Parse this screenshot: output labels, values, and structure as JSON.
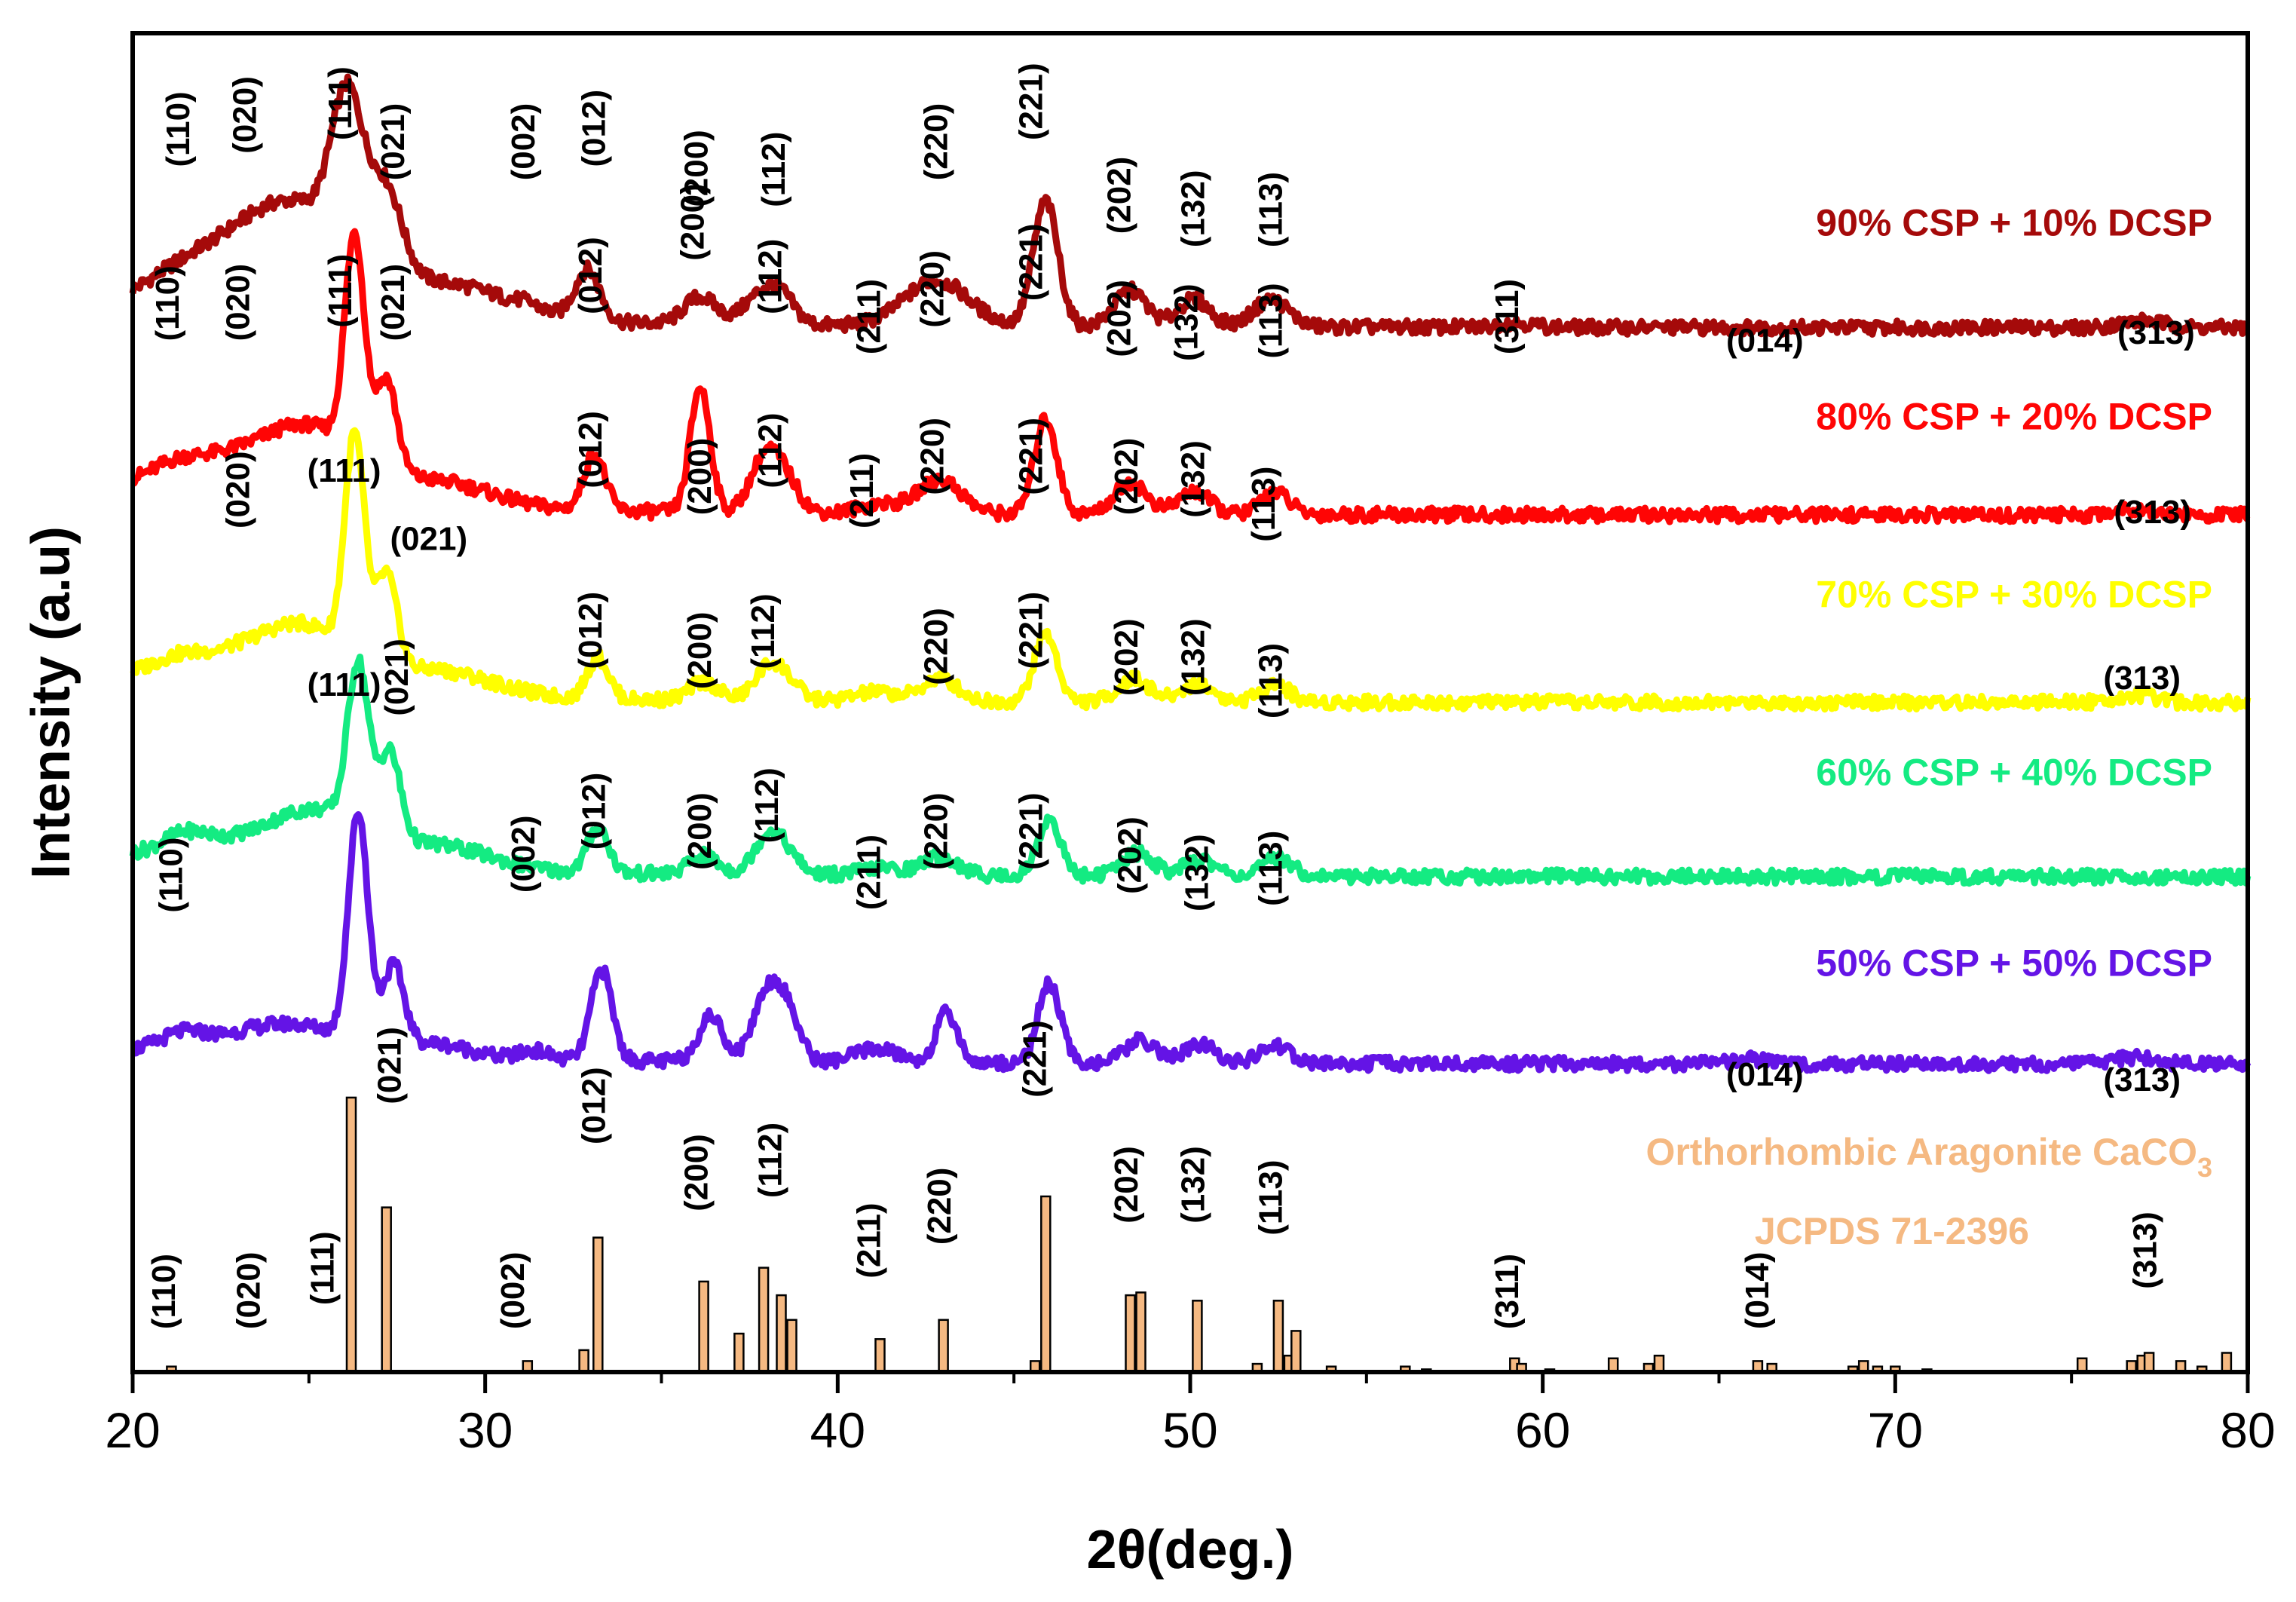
{
  "chart_data": {
    "type": "line",
    "title": "",
    "xlabel": "2θ(deg.)",
    "ylabel": "Intensity (a.u)",
    "xlim": [
      20,
      80
    ],
    "xticks": [
      20,
      30,
      40,
      50,
      60,
      70,
      80
    ],
    "xtick_labels": [
      "20",
      "30",
      "40",
      "50",
      "60",
      "70",
      "80"
    ],
    "grid": false,
    "legend": "inline labels at right",
    "series": [
      {
        "name": "90% CSP + 10% DCSP",
        "color": "#a50a0a",
        "offset": 0.78,
        "scale": 0.17,
        "base": 0.08,
        "peaks": [
          [
            21.2,
            0.05,
            1.0
          ],
          [
            23.5,
            0.3,
            2.0
          ],
          [
            25.0,
            0.25,
            1.5
          ],
          [
            26.1,
            0.65,
            0.45
          ],
          [
            27.2,
            0.35,
            0.45
          ],
          [
            29.0,
            0.15,
            1.8
          ],
          [
            31.2,
            0.02,
            0.3
          ],
          [
            32.9,
            0.22,
            0.35
          ],
          [
            36.1,
            0.12,
            0.45
          ],
          [
            37.8,
            0.12,
            0.5
          ],
          [
            38.4,
            0.1,
            0.4
          ],
          [
            42.8,
            0.2,
            0.9
          ],
          [
            45.9,
            0.55,
            0.35
          ],
          [
            48.3,
            0.16,
            0.45
          ],
          [
            50.1,
            0.12,
            0.45
          ],
          [
            52.3,
            0.12,
            0.5
          ],
          [
            59.2,
            0.02,
            0.5
          ],
          [
            77.0,
            0.03,
            0.6
          ]
        ],
        "labels": [
          {
            "t": "(110)",
            "x": 21.8,
            "y": 1.03
          },
          {
            "t": "(020)",
            "x": 23.8,
            "y": 1.06
          },
          {
            "t": "(111)",
            "x": 26.2,
            "y": 1.07
          },
          {
            "t": "(021)",
            "x": 27.7,
            "y": 1.04
          },
          {
            "t": "(002)",
            "x": 31.4,
            "y": 0.89
          },
          {
            "t": "(012)",
            "x": 33.4,
            "y": 0.9
          },
          {
            "t": "(200)",
            "x": 36.3,
            "y": 0.87
          },
          {
            "t": "(112)",
            "x": 38.5,
            "y": 0.87
          },
          {
            "t": "(220)",
            "x": 43.1,
            "y": 0.89
          },
          {
            "t": "(221)",
            "x": 45.8,
            "y": 0.92
          },
          {
            "t": "(202)",
            "x": 48.3,
            "y": 0.85
          },
          {
            "t": "(132)",
            "x": 50.4,
            "y": 0.84
          },
          {
            "t": "(113)",
            "x": 52.6,
            "y": 0.84
          },
          {
            "t": "(311)",
            "x": 59.3,
            "y": 0.76
          },
          {
            "t": "(014)",
            "x": 66.3,
            "y": 0.762
          },
          {
            "t": "(313)",
            "x": 77.4,
            "y": 0.768
          }
        ]
      },
      {
        "name": "80% CSP + 20% DCSP",
        "color": "#ff0505",
        "offset": 0.64,
        "scale": 0.17,
        "base": 0.07,
        "peaks": [
          [
            21.3,
            0.03,
            0.6
          ],
          [
            23.3,
            0.22,
            2.5
          ],
          [
            25.2,
            0.18,
            1.2
          ],
          [
            26.3,
            0.95,
            0.28
          ],
          [
            27.2,
            0.4,
            0.3
          ],
          [
            28.8,
            0.1,
            1.5
          ],
          [
            33.1,
            0.25,
            0.3
          ],
          [
            36.1,
            0.55,
            0.28
          ],
          [
            37.9,
            0.22,
            0.4
          ],
          [
            38.5,
            0.14,
            0.4
          ],
          [
            41.2,
            0.04,
            0.6
          ],
          [
            42.9,
            0.15,
            0.6
          ],
          [
            45.9,
            0.42,
            0.32
          ],
          [
            48.3,
            0.14,
            0.45
          ],
          [
            50.1,
            0.1,
            0.45
          ],
          [
            52.4,
            0.1,
            0.4
          ],
          [
            76.8,
            0.03,
            0.6
          ]
        ],
        "labels": [
          {
            "t": "(110)",
            "x": 21.6,
            "y": 0.9
          },
          {
            "t": "(020)",
            "x": 23.5,
            "y": 0.91
          },
          {
            "t": "(111)",
            "x": 26.2,
            "y": 0.92
          },
          {
            "t": "(021)",
            "x": 27.7,
            "y": 0.89
          },
          {
            "t": "(012)",
            "x": 33.3,
            "y": 0.79
          },
          {
            "t": "(200)",
            "x": 36.2,
            "y": 0.83
          },
          {
            "t": "(112)",
            "x": 38.4,
            "y": 0.79
          },
          {
            "t": "(211)",
            "x": 41.2,
            "y": 0.76
          },
          {
            "t": "(220)",
            "x": 43.0,
            "y": 0.78
          },
          {
            "t": "(221)",
            "x": 45.8,
            "y": 0.8
          },
          {
            "t": "(202)",
            "x": 48.3,
            "y": 0.758
          },
          {
            "t": "(132)",
            "x": 50.2,
            "y": 0.755
          },
          {
            "t": "(113)",
            "x": 52.6,
            "y": 0.757
          },
          {
            "t": "(313)",
            "x": 77.3,
            "y": 0.634
          }
        ]
      },
      {
        "name": "70% CSP + 30% DCSP",
        "color": "#ffff00",
        "offset": 0.5,
        "scale": 0.17,
        "base": 0.06,
        "peaks": [
          [
            21.2,
            0.03,
            0.6
          ],
          [
            23.3,
            0.18,
            2.5
          ],
          [
            25.0,
            0.16,
            1.2
          ],
          [
            26.3,
            0.95,
            0.28
          ],
          [
            27.2,
            0.4,
            0.3
          ],
          [
            28.8,
            0.1,
            1.5
          ],
          [
            33.2,
            0.18,
            0.3
          ],
          [
            36.2,
            0.08,
            0.4
          ],
          [
            38.0,
            0.12,
            0.4
          ],
          [
            38.5,
            0.08,
            0.4
          ],
          [
            41.1,
            0.04,
            0.6
          ],
          [
            42.9,
            0.1,
            0.5
          ],
          [
            45.9,
            0.3,
            0.32
          ],
          [
            48.4,
            0.1,
            0.45
          ],
          [
            50.2,
            0.08,
            0.45
          ],
          [
            52.4,
            0.08,
            0.4
          ],
          [
            76.8,
            0.03,
            0.6
          ]
        ],
        "labels": [
          {
            "t": "(110)",
            "x": 21.3,
            "y": 0.77
          },
          {
            "t": "(020)",
            "x": 23.3,
            "y": 0.77
          },
          {
            "t": "(111)",
            "x": 26.2,
            "y": 0.78
          },
          {
            "t": "(021)",
            "x": 27.7,
            "y": 0.77
          },
          {
            "t": "(012)",
            "x": 33.3,
            "y": 0.66
          },
          {
            "t": "(200)",
            "x": 36.4,
            "y": 0.64
          },
          {
            "t": "(112)",
            "x": 38.4,
            "y": 0.66
          },
          {
            "t": "(211)",
            "x": 41.0,
            "y": 0.63
          },
          {
            "t": "(220)",
            "x": 43.0,
            "y": 0.655
          },
          {
            "t": "(221)",
            "x": 45.8,
            "y": 0.655
          },
          {
            "t": "(202)",
            "x": 48.5,
            "y": 0.64
          },
          {
            "t": "(132)",
            "x": 50.4,
            "y": 0.638
          },
          {
            "t": "(113)",
            "x": 52.4,
            "y": 0.62
          },
          {
            "t": "(313)",
            "x": 77.0,
            "y": 0.51
          }
        ]
      },
      {
        "name": "60% CSP + 40% DCSP",
        "color": "#14eb82",
        "offset": 0.37,
        "scale": 0.17,
        "base": 0.06,
        "peaks": [
          [
            21.5,
            0.06,
            0.6
          ],
          [
            23.5,
            0.12,
            2.5
          ],
          [
            25.3,
            0.16,
            1.2
          ],
          [
            26.4,
            0.72,
            0.3
          ],
          [
            27.3,
            0.38,
            0.3
          ],
          [
            28.7,
            0.1,
            1.5
          ],
          [
            33.2,
            0.2,
            0.3
          ],
          [
            36.2,
            0.08,
            0.4
          ],
          [
            38.0,
            0.15,
            0.4
          ],
          [
            38.5,
            0.08,
            0.4
          ],
          [
            41.2,
            0.03,
            0.6
          ],
          [
            42.9,
            0.08,
            0.5
          ],
          [
            46.0,
            0.25,
            0.32
          ],
          [
            48.5,
            0.1,
            0.45
          ],
          [
            50.3,
            0.07,
            0.45
          ],
          [
            52.5,
            0.08,
            0.4
          ]
        ],
        "labels": [
          {
            "t": "(020)",
            "x": 23.3,
            "y": 0.63
          },
          {
            "t": "(111)",
            "x": 26.0,
            "y": 0.665
          },
          {
            "t": "(021)",
            "x": 28.4,
            "y": 0.614
          },
          {
            "t": "(012)",
            "x": 33.3,
            "y": 0.525
          },
          {
            "t": "(200)",
            "x": 36.4,
            "y": 0.51
          },
          {
            "t": "(112)",
            "x": 38.2,
            "y": 0.525
          },
          {
            "t": "(220)",
            "x": 43.1,
            "y": 0.513
          },
          {
            "t": "(221)",
            "x": 45.8,
            "y": 0.525
          },
          {
            "t": "(202)",
            "x": 48.5,
            "y": 0.505
          },
          {
            "t": "(132)",
            "x": 50.4,
            "y": 0.505
          },
          {
            "t": "(113)",
            "x": 52.6,
            "y": 0.488
          }
        ]
      },
      {
        "name": "50% CSP + 50% DCSP",
        "color": "#6414e6",
        "offset": 0.23,
        "scale": 0.17,
        "base": 0.06,
        "peaks": [
          [
            21.4,
            0.06,
            0.6
          ],
          [
            23.3,
            0.06,
            1.5
          ],
          [
            25.0,
            0.1,
            1.5
          ],
          [
            26.4,
            1.0,
            0.28
          ],
          [
            27.4,
            0.35,
            0.3
          ],
          [
            28.6,
            0.06,
            1.0
          ],
          [
            31.4,
            0.04,
            0.4
          ],
          [
            33.3,
            0.4,
            0.3
          ],
          [
            36.4,
            0.2,
            0.35
          ],
          [
            38.0,
            0.3,
            0.4
          ],
          [
            38.6,
            0.18,
            0.35
          ],
          [
            41.1,
            0.06,
            0.6
          ],
          [
            43.1,
            0.22,
            0.3
          ],
          [
            46.0,
            0.35,
            0.32
          ],
          [
            48.6,
            0.1,
            0.45
          ],
          [
            50.3,
            0.08,
            0.45
          ],
          [
            52.4,
            0.08,
            0.4
          ],
          [
            66.0,
            0.02,
            0.5
          ],
          [
            76.8,
            0.03,
            0.6
          ]
        ],
        "labels": [
          {
            "t": "(110)",
            "x": 21.4,
            "y": 0.343
          },
          {
            "t": "(111)",
            "x": 26.0,
            "y": 0.505
          },
          {
            "t": "(021)",
            "x": 27.8,
            "y": 0.49
          },
          {
            "t": "(002)",
            "x": 31.4,
            "y": 0.358
          },
          {
            "t": "(012)",
            "x": 33.4,
            "y": 0.39
          },
          {
            "t": "(200)",
            "x": 36.4,
            "y": 0.375
          },
          {
            "t": "(112)",
            "x": 38.3,
            "y": 0.395
          },
          {
            "t": "(211)",
            "x": 41.2,
            "y": 0.345
          },
          {
            "t": "(220)",
            "x": 43.1,
            "y": 0.375
          },
          {
            "t": "(221)",
            "x": 45.8,
            "y": 0.375
          },
          {
            "t": "(202)",
            "x": 48.6,
            "y": 0.357
          },
          {
            "t": "(132)",
            "x": 50.5,
            "y": 0.344
          },
          {
            "t": "(113)",
            "x": 52.6,
            "y": 0.348
          },
          {
            "t": "(014)",
            "x": 66.3,
            "y": 0.214
          },
          {
            "t": "(313)",
            "x": 77.0,
            "y": 0.21
          }
        ]
      }
    ],
    "reference": {
      "name": "Orthorhombic Aragonite CaCO",
      "subscript": "3",
      "card": "JCPDS 71-2396",
      "color": "#f5b982",
      "sticks": [
        [
          21.1,
          0.02
        ],
        [
          26.2,
          1.0
        ],
        [
          27.2,
          0.6
        ],
        [
          31.2,
          0.04
        ],
        [
          32.8,
          0.08
        ],
        [
          33.2,
          0.49
        ],
        [
          36.2,
          0.33
        ],
        [
          37.2,
          0.14
        ],
        [
          37.9,
          0.38
        ],
        [
          38.4,
          0.28
        ],
        [
          38.7,
          0.19
        ],
        [
          41.2,
          0.12
        ],
        [
          43.0,
          0.19
        ],
        [
          45.6,
          0.04
        ],
        [
          45.9,
          0.64
        ],
        [
          48.3,
          0.28
        ],
        [
          48.6,
          0.29
        ],
        [
          50.2,
          0.26
        ],
        [
          51.9,
          0.03
        ],
        [
          52.5,
          0.26
        ],
        [
          52.8,
          0.06
        ],
        [
          53.0,
          0.15
        ],
        [
          54.0,
          0.02
        ],
        [
          56.1,
          0.02
        ],
        [
          56.7,
          0.01
        ],
        [
          59.2,
          0.05
        ],
        [
          59.4,
          0.03
        ],
        [
          60.2,
          0.01
        ],
        [
          62.0,
          0.05
        ],
        [
          63.0,
          0.03
        ],
        [
          63.3,
          0.06
        ],
        [
          66.1,
          0.04
        ],
        [
          66.5,
          0.03
        ],
        [
          68.8,
          0.02
        ],
        [
          69.1,
          0.04
        ],
        [
          69.5,
          0.02
        ],
        [
          70.0,
          0.02
        ],
        [
          70.9,
          0.01
        ],
        [
          75.3,
          0.05
        ],
        [
          76.7,
          0.04
        ],
        [
          77.0,
          0.06
        ],
        [
          77.2,
          0.07
        ],
        [
          78.1,
          0.04
        ],
        [
          78.7,
          0.02
        ],
        [
          79.4,
          0.07
        ]
      ],
      "labels": [
        {
          "t": "(110)",
          "x": 21.2,
          "y": 0.032
        },
        {
          "t": "(020)",
          "x": 23.6,
          "y": 0.032
        },
        {
          "t": "(111)",
          "x": 25.7,
          "y": 0.05
        },
        {
          "t": "(021)",
          "x": 27.6,
          "y": 0.2
        },
        {
          "t": "(002)",
          "x": 31.1,
          "y": 0.032
        },
        {
          "t": "(012)",
          "x": 33.4,
          "y": 0.17
        },
        {
          "t": "(200)",
          "x": 36.3,
          "y": 0.12
        },
        {
          "t": "(112)",
          "x": 38.4,
          "y": 0.13
        },
        {
          "t": "(211)",
          "x": 41.2,
          "y": 0.07
        },
        {
          "t": "(220)",
          "x": 43.2,
          "y": 0.095
        },
        {
          "t": "(221)",
          "x": 45.9,
          "y": 0.205
        },
        {
          "t": "(202)",
          "x": 48.5,
          "y": 0.111
        },
        {
          "t": "(132)",
          "x": 50.4,
          "y": 0.111
        },
        {
          "t": "(113)",
          "x": 52.6,
          "y": 0.102
        },
        {
          "t": "(311)",
          "x": 59.3,
          "y": 0.032
        },
        {
          "t": "(014)",
          "x": 66.4,
          "y": 0.032
        },
        {
          "t": "(313)",
          "x": 77.4,
          "y": 0.062
        }
      ]
    }
  }
}
